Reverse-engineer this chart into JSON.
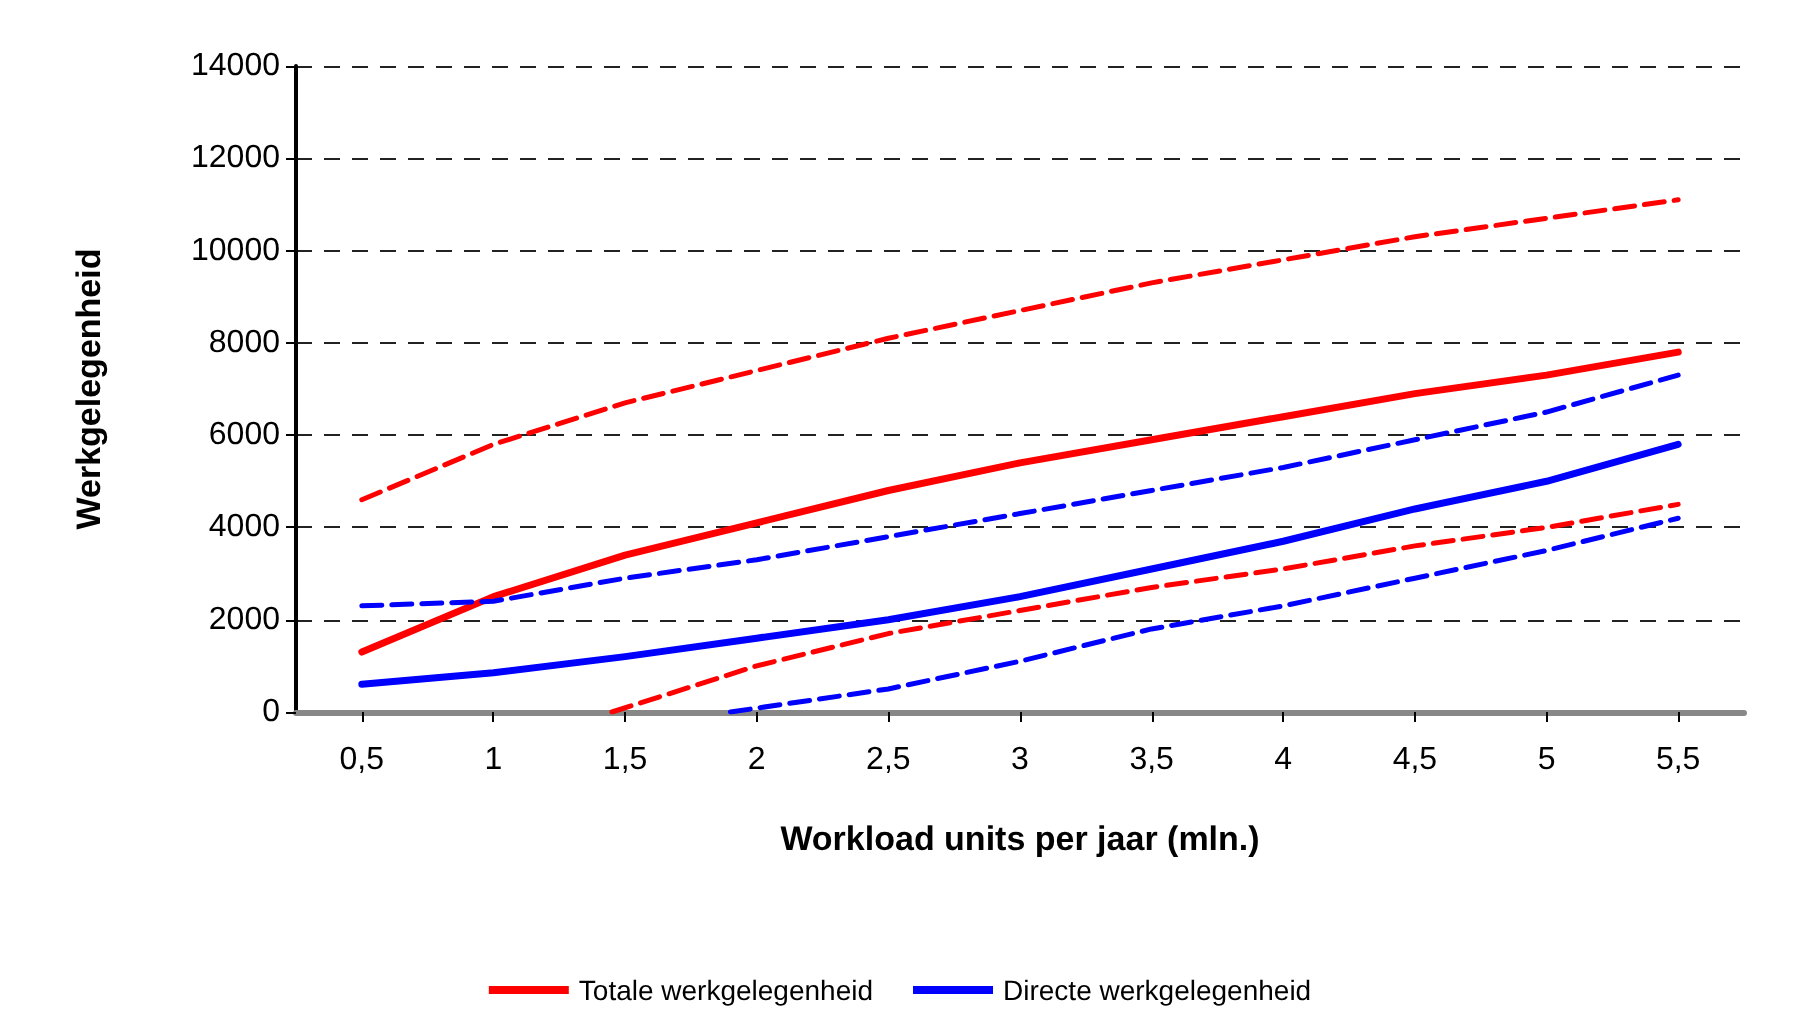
{
  "chart_data": {
    "type": "line",
    "xlabel": "Workload units per jaar (mln.)",
    "ylabel": "Werkgelegenheid",
    "x": [
      0.5,
      1,
      1.5,
      2,
      2.5,
      3,
      3.5,
      4,
      4.5,
      5,
      5.5
    ],
    "xlim": [
      0.25,
      5.75
    ],
    "xticks": [
      {
        "value": 0.5,
        "label": "0,5"
      },
      1,
      {
        "value": 1.5,
        "label": "1,5"
      },
      2,
      {
        "value": 2.5,
        "label": "2,5"
      },
      3,
      {
        "value": 3.5,
        "label": "3,5"
      },
      4,
      {
        "value": 4.5,
        "label": "4,5"
      },
      5,
      {
        "value": 5.5,
        "label": "5,5"
      }
    ],
    "ylim": [
      0,
      14000
    ],
    "yticks": [
      0,
      2000,
      4000,
      6000,
      8000,
      10000,
      12000,
      14000
    ],
    "grid": "y",
    "legend": "bottom",
    "marker": "none",
    "series": [
      {
        "name": "Totale werkgelegenheid",
        "color": "#ff0000",
        "line_style": "solid",
        "values": [
          1300,
          2500,
          3400,
          4100,
          4800,
          5400,
          5900,
          6400,
          6900,
          7300,
          7800
        ]
      },
      {
        "name": "Directe werkgelegenheid",
        "color": "#0000ff",
        "line_style": "solid",
        "values": [
          600,
          850,
          1200,
          1600,
          2000,
          2500,
          3100,
          3700,
          4400,
          5000,
          5800
        ]
      },
      {
        "color": "#ff0000",
        "line_style": "dashed",
        "values": [
          4600,
          5800,
          6700,
          7400,
          8100,
          8700,
          9300,
          9800,
          10300,
          10700,
          11100
        ]
      },
      {
        "color": "#ff0000",
        "line_style": "dashed",
        "x": [
          1.45,
          2,
          2.5,
          3,
          3.5,
          4,
          4.5,
          5,
          5.5
        ],
        "values": [
          0,
          1000,
          1700,
          2200,
          2700,
          3100,
          3600,
          4000,
          4500
        ]
      },
      {
        "color": "#0000ff",
        "line_style": "dashed",
        "values": [
          2300,
          2400,
          2900,
          3300,
          3800,
          4300,
          4800,
          5300,
          5900,
          6500,
          7300
        ]
      },
      {
        "color": "#0000ff",
        "line_style": "dashed",
        "x": [
          1.9,
          2.5,
          3,
          3.5,
          4,
          4.5,
          5,
          5.5
        ],
        "values": [
          0,
          500,
          1100,
          1800,
          2300,
          2900,
          3500,
          4200
        ]
      }
    ]
  }
}
